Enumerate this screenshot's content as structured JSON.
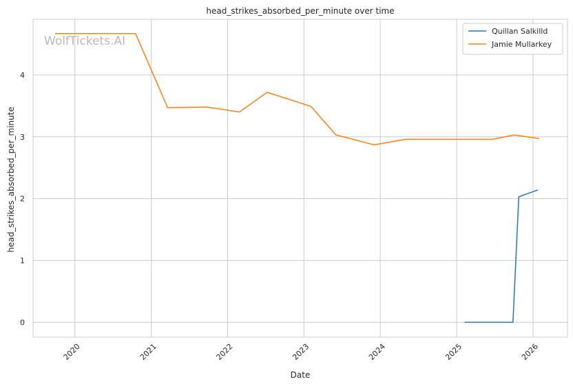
{
  "chart_data": {
    "type": "line",
    "title": "head_strikes_absorbed_per_minute over time",
    "xlabel": "Date",
    "ylabel": "head_strikes_absorbed_per_minute",
    "watermark": "WolfTickets.AI",
    "xlim": [
      "2019-06-15",
      "2026-06-15"
    ],
    "ylim": [
      -0.24,
      4.9
    ],
    "x_ticks": [
      "2020",
      "2021",
      "2022",
      "2023",
      "2024",
      "2025",
      "2026"
    ],
    "y_ticks": [
      "0",
      "1",
      "2",
      "3",
      "4"
    ],
    "grid": true,
    "legend_position": "top-right",
    "series": [
      {
        "name": "Quillan Salkilld",
        "color": "#1f77b4",
        "points": [
          {
            "x": "2025-02-08",
            "y": 0.0
          },
          {
            "x": "2025-09-27",
            "y": 0.0
          },
          {
            "x": "2025-10-25",
            "y": 2.03
          },
          {
            "x": "2026-01-24",
            "y": 2.14
          }
        ]
      },
      {
        "name": "Jamie Mullarkey",
        "color": "#ff7f0e",
        "points": [
          {
            "x": "2019-09-28",
            "y": 4.67
          },
          {
            "x": "2020-10-17",
            "y": 4.67
          },
          {
            "x": "2021-03-20",
            "y": 3.47
          },
          {
            "x": "2021-09-25",
            "y": 3.48
          },
          {
            "x": "2022-02-26",
            "y": 3.4
          },
          {
            "x": "2022-07-09",
            "y": 3.72
          },
          {
            "x": "2023-02-04",
            "y": 3.49
          },
          {
            "x": "2023-06-03",
            "y": 3.03
          },
          {
            "x": "2023-12-02",
            "y": 2.87
          },
          {
            "x": "2024-05-04",
            "y": 2.96
          },
          {
            "x": "2025-06-21",
            "y": 2.96
          },
          {
            "x": "2025-10-04",
            "y": 3.03
          },
          {
            "x": "2026-01-31",
            "y": 2.97
          }
        ]
      }
    ]
  }
}
